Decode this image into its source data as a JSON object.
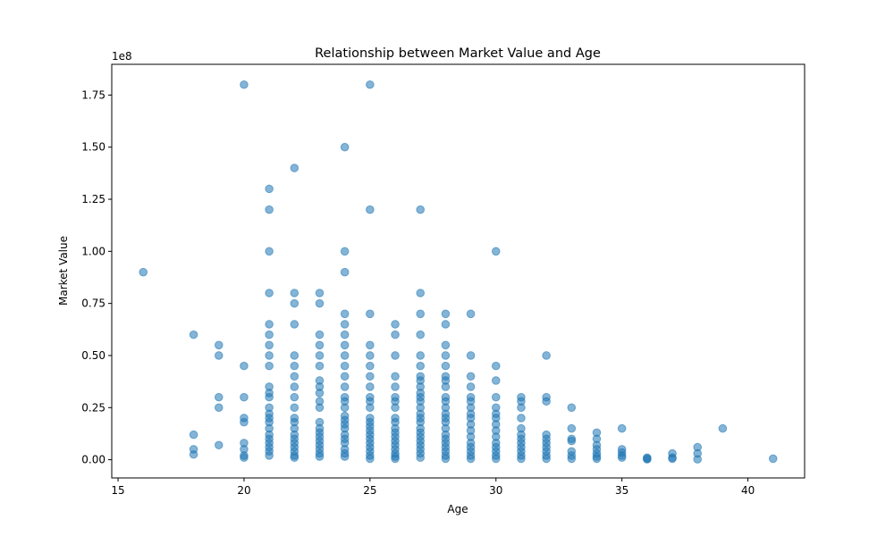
{
  "chart_data": {
    "type": "scatter",
    "title": "Relationship between Market Value and Age",
    "xlabel": "Age",
    "ylabel": "Market Value",
    "y_offset_label": "1e8",
    "xlim": [
      14.75,
      42.25
    ],
    "ylim": [
      -8750000,
      189750000
    ],
    "x_ticks": [
      15,
      20,
      25,
      30,
      35,
      40
    ],
    "x_tick_labels": [
      "15",
      "20",
      "25",
      "30",
      "35",
      "40"
    ],
    "y_ticks": [
      0,
      25000000,
      50000000,
      75000000,
      100000000,
      125000000,
      150000000,
      175000000
    ],
    "y_tick_labels": [
      "0.00",
      "0.25",
      "0.50",
      "0.75",
      "1.00",
      "1.25",
      "1.50",
      "1.75"
    ],
    "grid": false,
    "marker_color": "#1f77b4",
    "marker_alpha": 0.55,
    "points": [
      {
        "x": 16,
        "y": 90000000
      },
      {
        "x": 18,
        "y": 60000000
      },
      {
        "x": 18,
        "y": 12000000
      },
      {
        "x": 18,
        "y": 5000000
      },
      {
        "x": 18,
        "y": 2500000
      },
      {
        "x": 19,
        "y": 55000000
      },
      {
        "x": 19,
        "y": 50000000
      },
      {
        "x": 19,
        "y": 30000000
      },
      {
        "x": 19,
        "y": 25000000
      },
      {
        "x": 19,
        "y": 7000000
      },
      {
        "x": 20,
        "y": 180000000
      },
      {
        "x": 20,
        "y": 45000000
      },
      {
        "x": 20,
        "y": 30000000
      },
      {
        "x": 20,
        "y": 20000000
      },
      {
        "x": 20,
        "y": 18000000
      },
      {
        "x": 20,
        "y": 8000000
      },
      {
        "x": 20,
        "y": 5000000
      },
      {
        "x": 20,
        "y": 2000000
      },
      {
        "x": 20,
        "y": 1000000
      },
      {
        "x": 21,
        "y": 130000000
      },
      {
        "x": 21,
        "y": 120000000
      },
      {
        "x": 21,
        "y": 100000000
      },
      {
        "x": 21,
        "y": 80000000
      },
      {
        "x": 21,
        "y": 65000000
      },
      {
        "x": 21,
        "y": 60000000
      },
      {
        "x": 21,
        "y": 55000000
      },
      {
        "x": 21,
        "y": 50000000
      },
      {
        "x": 21,
        "y": 45000000
      },
      {
        "x": 21,
        "y": 35000000
      },
      {
        "x": 21,
        "y": 32000000
      },
      {
        "x": 21,
        "y": 30000000
      },
      {
        "x": 21,
        "y": 25000000
      },
      {
        "x": 21,
        "y": 22000000
      },
      {
        "x": 21,
        "y": 20000000
      },
      {
        "x": 21,
        "y": 18000000
      },
      {
        "x": 21,
        "y": 15000000
      },
      {
        "x": 21,
        "y": 12000000
      },
      {
        "x": 21,
        "y": 10000000
      },
      {
        "x": 21,
        "y": 8000000
      },
      {
        "x": 21,
        "y": 6000000
      },
      {
        "x": 21,
        "y": 4000000
      },
      {
        "x": 21,
        "y": 2000000
      },
      {
        "x": 22,
        "y": 140000000
      },
      {
        "x": 22,
        "y": 80000000
      },
      {
        "x": 22,
        "y": 75000000
      },
      {
        "x": 22,
        "y": 65000000
      },
      {
        "x": 22,
        "y": 50000000
      },
      {
        "x": 22,
        "y": 45000000
      },
      {
        "x": 22,
        "y": 40000000
      },
      {
        "x": 22,
        "y": 35000000
      },
      {
        "x": 22,
        "y": 30000000
      },
      {
        "x": 22,
        "y": 25000000
      },
      {
        "x": 22,
        "y": 20000000
      },
      {
        "x": 22,
        "y": 18000000
      },
      {
        "x": 22,
        "y": 15000000
      },
      {
        "x": 22,
        "y": 12000000
      },
      {
        "x": 22,
        "y": 10000000
      },
      {
        "x": 22,
        "y": 8000000
      },
      {
        "x": 22,
        "y": 6000000
      },
      {
        "x": 22,
        "y": 4000000
      },
      {
        "x": 22,
        "y": 2000000
      },
      {
        "x": 22,
        "y": 1000000
      },
      {
        "x": 23,
        "y": 80000000
      },
      {
        "x": 23,
        "y": 75000000
      },
      {
        "x": 23,
        "y": 60000000
      },
      {
        "x": 23,
        "y": 55000000
      },
      {
        "x": 23,
        "y": 50000000
      },
      {
        "x": 23,
        "y": 45000000
      },
      {
        "x": 23,
        "y": 38000000
      },
      {
        "x": 23,
        "y": 35000000
      },
      {
        "x": 23,
        "y": 32000000
      },
      {
        "x": 23,
        "y": 28000000
      },
      {
        "x": 23,
        "y": 25000000
      },
      {
        "x": 23,
        "y": 18000000
      },
      {
        "x": 23,
        "y": 15000000
      },
      {
        "x": 23,
        "y": 13000000
      },
      {
        "x": 23,
        "y": 11000000
      },
      {
        "x": 23,
        "y": 9000000
      },
      {
        "x": 23,
        "y": 7000000
      },
      {
        "x": 23,
        "y": 5000000
      },
      {
        "x": 23,
        "y": 3000000
      },
      {
        "x": 23,
        "y": 1500000
      },
      {
        "x": 24,
        "y": 150000000
      },
      {
        "x": 24,
        "y": 100000000
      },
      {
        "x": 24,
        "y": 90000000
      },
      {
        "x": 24,
        "y": 70000000
      },
      {
        "x": 24,
        "y": 65000000
      },
      {
        "x": 24,
        "y": 60000000
      },
      {
        "x": 24,
        "y": 55000000
      },
      {
        "x": 24,
        "y": 50000000
      },
      {
        "x": 24,
        "y": 45000000
      },
      {
        "x": 24,
        "y": 40000000
      },
      {
        "x": 24,
        "y": 35000000
      },
      {
        "x": 24,
        "y": 30000000
      },
      {
        "x": 24,
        "y": 28000000
      },
      {
        "x": 24,
        "y": 25000000
      },
      {
        "x": 24,
        "y": 21000000
      },
      {
        "x": 24,
        "y": 19000000
      },
      {
        "x": 24,
        "y": 17000000
      },
      {
        "x": 24,
        "y": 15000000
      },
      {
        "x": 24,
        "y": 12000000
      },
      {
        "x": 24,
        "y": 10000000
      },
      {
        "x": 24,
        "y": 8000000
      },
      {
        "x": 24,
        "y": 5000000
      },
      {
        "x": 24,
        "y": 3000000
      },
      {
        "x": 24,
        "y": 1500000
      },
      {
        "x": 25,
        "y": 180000000
      },
      {
        "x": 25,
        "y": 120000000
      },
      {
        "x": 25,
        "y": 70000000
      },
      {
        "x": 25,
        "y": 55000000
      },
      {
        "x": 25,
        "y": 50000000
      },
      {
        "x": 25,
        "y": 45000000
      },
      {
        "x": 25,
        "y": 40000000
      },
      {
        "x": 25,
        "y": 35000000
      },
      {
        "x": 25,
        "y": 30000000
      },
      {
        "x": 25,
        "y": 28000000
      },
      {
        "x": 25,
        "y": 25000000
      },
      {
        "x": 25,
        "y": 20000000
      },
      {
        "x": 25,
        "y": 18000000
      },
      {
        "x": 25,
        "y": 16000000
      },
      {
        "x": 25,
        "y": 14000000
      },
      {
        "x": 25,
        "y": 12000000
      },
      {
        "x": 25,
        "y": 10000000
      },
      {
        "x": 25,
        "y": 8000000
      },
      {
        "x": 25,
        "y": 6000000
      },
      {
        "x": 25,
        "y": 4000000
      },
      {
        "x": 25,
        "y": 2000000
      },
      {
        "x": 25,
        "y": 500000
      },
      {
        "x": 26,
        "y": 65000000
      },
      {
        "x": 26,
        "y": 60000000
      },
      {
        "x": 26,
        "y": 50000000
      },
      {
        "x": 26,
        "y": 40000000
      },
      {
        "x": 26,
        "y": 35000000
      },
      {
        "x": 26,
        "y": 30000000
      },
      {
        "x": 26,
        "y": 28000000
      },
      {
        "x": 26,
        "y": 25000000
      },
      {
        "x": 26,
        "y": 20000000
      },
      {
        "x": 26,
        "y": 18000000
      },
      {
        "x": 26,
        "y": 15000000
      },
      {
        "x": 26,
        "y": 13000000
      },
      {
        "x": 26,
        "y": 11000000
      },
      {
        "x": 26,
        "y": 9000000
      },
      {
        "x": 26,
        "y": 7000000
      },
      {
        "x": 26,
        "y": 5000000
      },
      {
        "x": 26,
        "y": 3000000
      },
      {
        "x": 26,
        "y": 1500000
      },
      {
        "x": 26,
        "y": 500000
      },
      {
        "x": 27,
        "y": 120000000
      },
      {
        "x": 27,
        "y": 80000000
      },
      {
        "x": 27,
        "y": 70000000
      },
      {
        "x": 27,
        "y": 60000000
      },
      {
        "x": 27,
        "y": 50000000
      },
      {
        "x": 27,
        "y": 45000000
      },
      {
        "x": 27,
        "y": 40000000
      },
      {
        "x": 27,
        "y": 38000000
      },
      {
        "x": 27,
        "y": 35000000
      },
      {
        "x": 27,
        "y": 32000000
      },
      {
        "x": 27,
        "y": 30000000
      },
      {
        "x": 27,
        "y": 28000000
      },
      {
        "x": 27,
        "y": 25000000
      },
      {
        "x": 27,
        "y": 22000000
      },
      {
        "x": 27,
        "y": 20000000
      },
      {
        "x": 27,
        "y": 18000000
      },
      {
        "x": 27,
        "y": 15000000
      },
      {
        "x": 27,
        "y": 13000000
      },
      {
        "x": 27,
        "y": 11000000
      },
      {
        "x": 27,
        "y": 9000000
      },
      {
        "x": 27,
        "y": 7000000
      },
      {
        "x": 27,
        "y": 5000000
      },
      {
        "x": 27,
        "y": 3000000
      },
      {
        "x": 27,
        "y": 1000000
      },
      {
        "x": 28,
        "y": 70000000
      },
      {
        "x": 28,
        "y": 65000000
      },
      {
        "x": 28,
        "y": 55000000
      },
      {
        "x": 28,
        "y": 50000000
      },
      {
        "x": 28,
        "y": 45000000
      },
      {
        "x": 28,
        "y": 40000000
      },
      {
        "x": 28,
        "y": 38000000
      },
      {
        "x": 28,
        "y": 35000000
      },
      {
        "x": 28,
        "y": 30000000
      },
      {
        "x": 28,
        "y": 28000000
      },
      {
        "x": 28,
        "y": 25000000
      },
      {
        "x": 28,
        "y": 22000000
      },
      {
        "x": 28,
        "y": 20000000
      },
      {
        "x": 28,
        "y": 18000000
      },
      {
        "x": 28,
        "y": 15000000
      },
      {
        "x": 28,
        "y": 12000000
      },
      {
        "x": 28,
        "y": 10000000
      },
      {
        "x": 28,
        "y": 8000000
      },
      {
        "x": 28,
        "y": 6000000
      },
      {
        "x": 28,
        "y": 4000000
      },
      {
        "x": 28,
        "y": 2000000
      },
      {
        "x": 28,
        "y": 500000
      },
      {
        "x": 29,
        "y": 70000000
      },
      {
        "x": 29,
        "y": 50000000
      },
      {
        "x": 29,
        "y": 40000000
      },
      {
        "x": 29,
        "y": 35000000
      },
      {
        "x": 29,
        "y": 30000000
      },
      {
        "x": 29,
        "y": 28000000
      },
      {
        "x": 29,
        "y": 25000000
      },
      {
        "x": 29,
        "y": 22000000
      },
      {
        "x": 29,
        "y": 20000000
      },
      {
        "x": 29,
        "y": 17000000
      },
      {
        "x": 29,
        "y": 14000000
      },
      {
        "x": 29,
        "y": 11000000
      },
      {
        "x": 29,
        "y": 8000000
      },
      {
        "x": 29,
        "y": 6000000
      },
      {
        "x": 29,
        "y": 4000000
      },
      {
        "x": 29,
        "y": 2000000
      },
      {
        "x": 29,
        "y": 500000
      },
      {
        "x": 30,
        "y": 100000000
      },
      {
        "x": 30,
        "y": 45000000
      },
      {
        "x": 30,
        "y": 38000000
      },
      {
        "x": 30,
        "y": 30000000
      },
      {
        "x": 30,
        "y": 25000000
      },
      {
        "x": 30,
        "y": 22000000
      },
      {
        "x": 30,
        "y": 20000000
      },
      {
        "x": 30,
        "y": 17000000
      },
      {
        "x": 30,
        "y": 14000000
      },
      {
        "x": 30,
        "y": 11000000
      },
      {
        "x": 30,
        "y": 8000000
      },
      {
        "x": 30,
        "y": 6000000
      },
      {
        "x": 30,
        "y": 4000000
      },
      {
        "x": 30,
        "y": 2000000
      },
      {
        "x": 30,
        "y": 500000
      },
      {
        "x": 31,
        "y": 30000000
      },
      {
        "x": 31,
        "y": 28000000
      },
      {
        "x": 31,
        "y": 25000000
      },
      {
        "x": 31,
        "y": 20000000
      },
      {
        "x": 31,
        "y": 15000000
      },
      {
        "x": 31,
        "y": 12000000
      },
      {
        "x": 31,
        "y": 10000000
      },
      {
        "x": 31,
        "y": 8000000
      },
      {
        "x": 31,
        "y": 6000000
      },
      {
        "x": 31,
        "y": 4000000
      },
      {
        "x": 31,
        "y": 2000000
      },
      {
        "x": 31,
        "y": 500000
      },
      {
        "x": 32,
        "y": 50000000
      },
      {
        "x": 32,
        "y": 30000000
      },
      {
        "x": 32,
        "y": 28000000
      },
      {
        "x": 32,
        "y": 12000000
      },
      {
        "x": 32,
        "y": 10000000
      },
      {
        "x": 32,
        "y": 8000000
      },
      {
        "x": 32,
        "y": 6000000
      },
      {
        "x": 32,
        "y": 4000000
      },
      {
        "x": 32,
        "y": 2000000
      },
      {
        "x": 32,
        "y": 500000
      },
      {
        "x": 33,
        "y": 25000000
      },
      {
        "x": 33,
        "y": 15000000
      },
      {
        "x": 33,
        "y": 10000000
      },
      {
        "x": 33,
        "y": 9000000
      },
      {
        "x": 33,
        "y": 4000000
      },
      {
        "x": 33,
        "y": 2000000
      },
      {
        "x": 33,
        "y": 500000
      },
      {
        "x": 34,
        "y": 13000000
      },
      {
        "x": 34,
        "y": 10000000
      },
      {
        "x": 34,
        "y": 7000000
      },
      {
        "x": 34,
        "y": 5000000
      },
      {
        "x": 34,
        "y": 3000000
      },
      {
        "x": 34,
        "y": 1500000
      },
      {
        "x": 34,
        "y": 500000
      },
      {
        "x": 35,
        "y": 15000000
      },
      {
        "x": 35,
        "y": 5000000
      },
      {
        "x": 35,
        "y": 3500000
      },
      {
        "x": 35,
        "y": 2000000
      },
      {
        "x": 35,
        "y": 1000000
      },
      {
        "x": 36,
        "y": 1000000
      },
      {
        "x": 36,
        "y": 500000
      },
      {
        "x": 36,
        "y": 200000
      },
      {
        "x": 37,
        "y": 3000000
      },
      {
        "x": 37,
        "y": 1000000
      },
      {
        "x": 37,
        "y": 500000
      },
      {
        "x": 38,
        "y": 6000000
      },
      {
        "x": 38,
        "y": 3000000
      },
      {
        "x": 38,
        "y": 200000
      },
      {
        "x": 39,
        "y": 15000000
      },
      {
        "x": 41,
        "y": 500000
      }
    ]
  }
}
